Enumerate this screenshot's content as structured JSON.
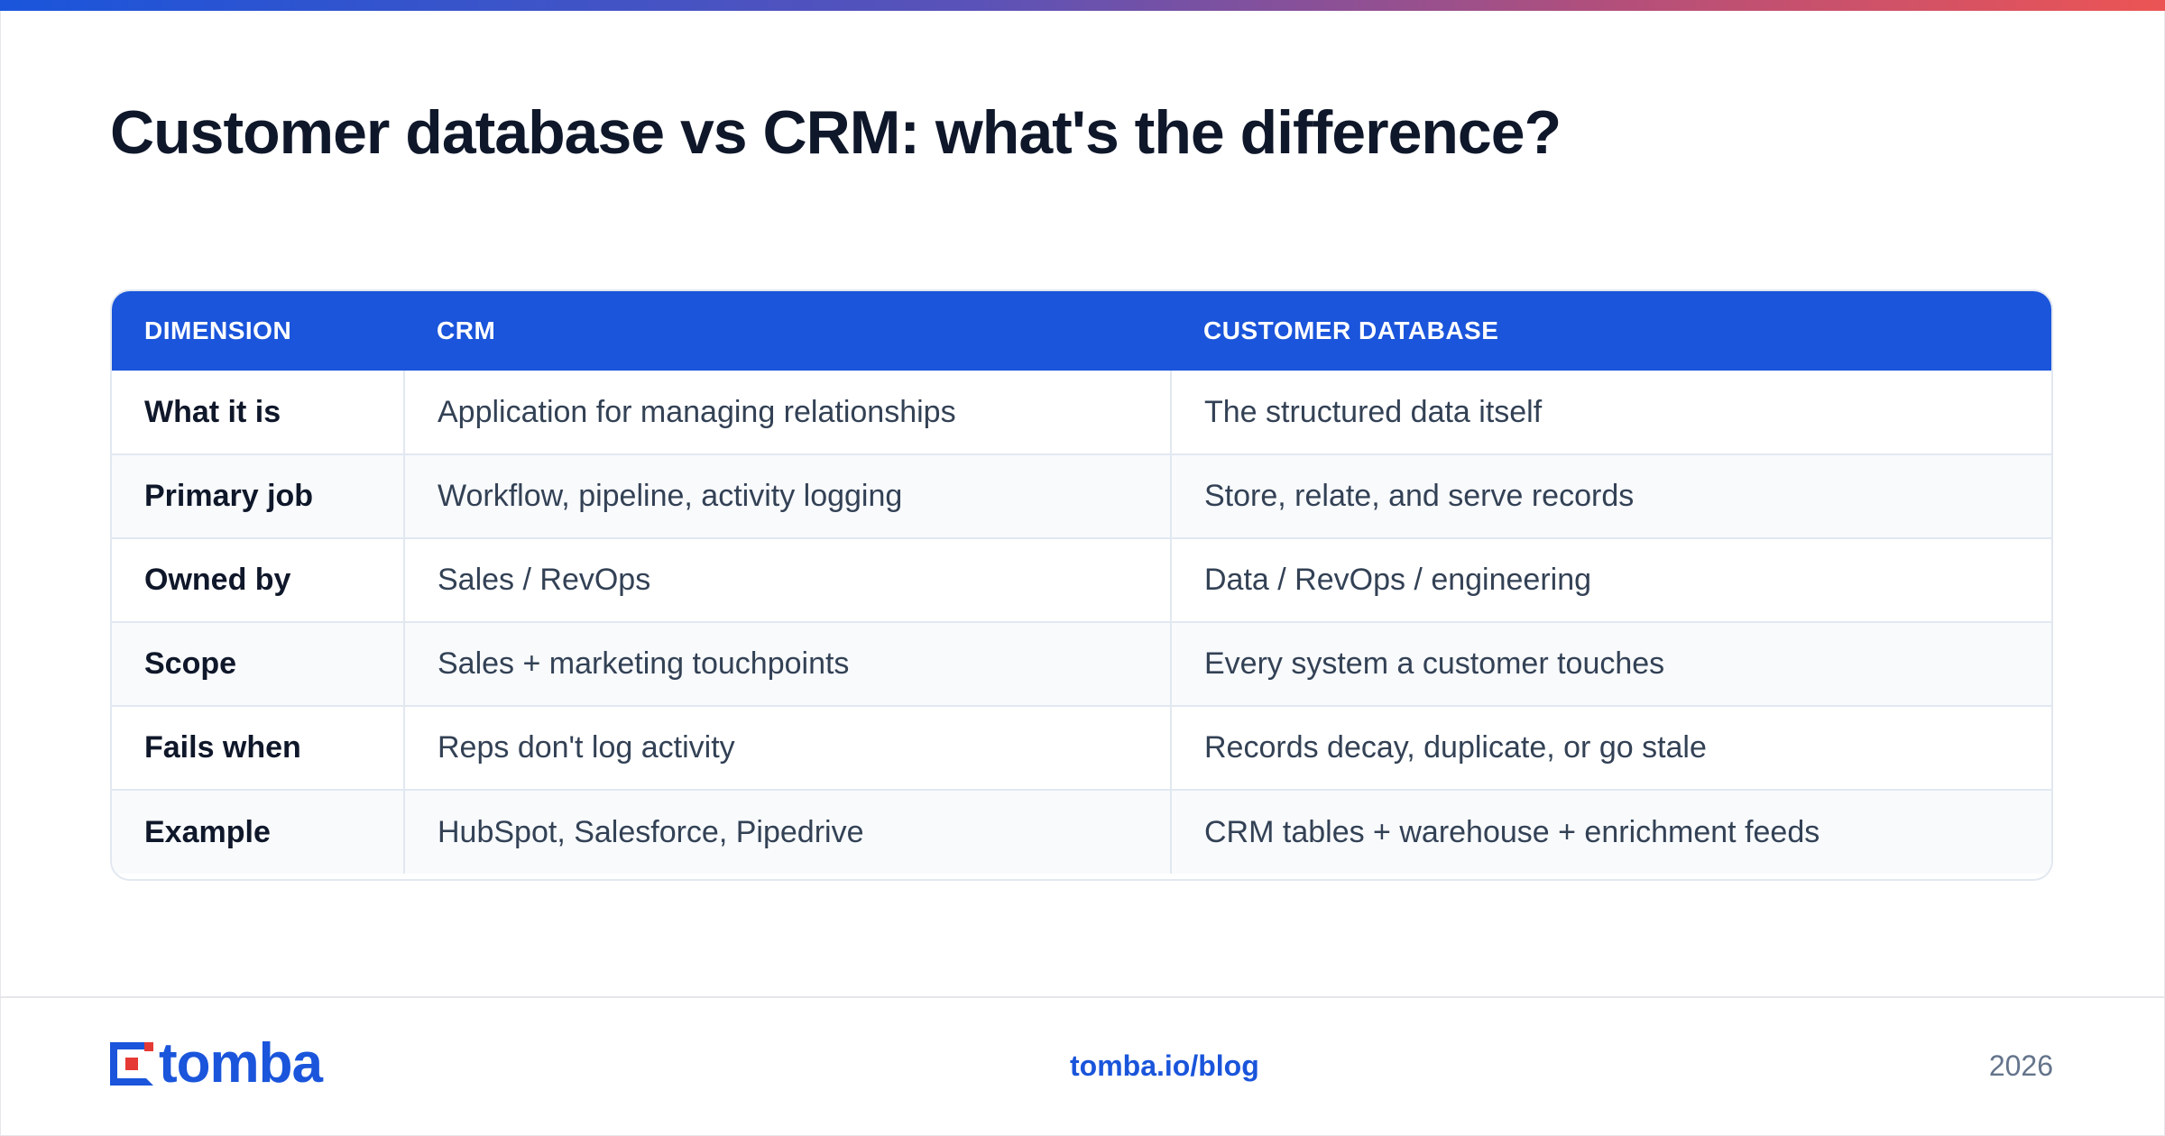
{
  "page": {
    "title": "Customer database vs CRM: what's the difference?"
  },
  "table": {
    "headers": [
      "DIMENSION",
      "CRM",
      "CUSTOMER DATABASE"
    ],
    "rows": [
      {
        "dimension": "What it is",
        "crm": "Application for managing relationships",
        "customer_database": "The structured data itself"
      },
      {
        "dimension": "Primary job",
        "crm": "Workflow, pipeline, activity logging",
        "customer_database": "Store, relate, and serve records"
      },
      {
        "dimension": "Owned by",
        "crm": "Sales / RevOps",
        "customer_database": "Data / RevOps / engineering"
      },
      {
        "dimension": "Scope",
        "crm": "Sales + marketing touchpoints",
        "customer_database": "Every system a customer touches"
      },
      {
        "dimension": "Fails when",
        "crm": "Reps don't log activity",
        "customer_database": "Records decay, duplicate, or go stale"
      },
      {
        "dimension": "Example",
        "crm": "HubSpot, Salesforce, Pipedrive",
        "customer_database": "CRM tables + warehouse + enrichment feeds"
      }
    ]
  },
  "footer": {
    "logo_text": "tomba",
    "link": "tomba.io/blog",
    "year": "2026"
  },
  "colors": {
    "accent": "#1a55db",
    "logo_red": "#e53935",
    "title": "#0f172a",
    "body_text": "#334155",
    "muted": "#64748b"
  },
  "icons": {
    "logo_mark": "tomba-logo-icon"
  }
}
